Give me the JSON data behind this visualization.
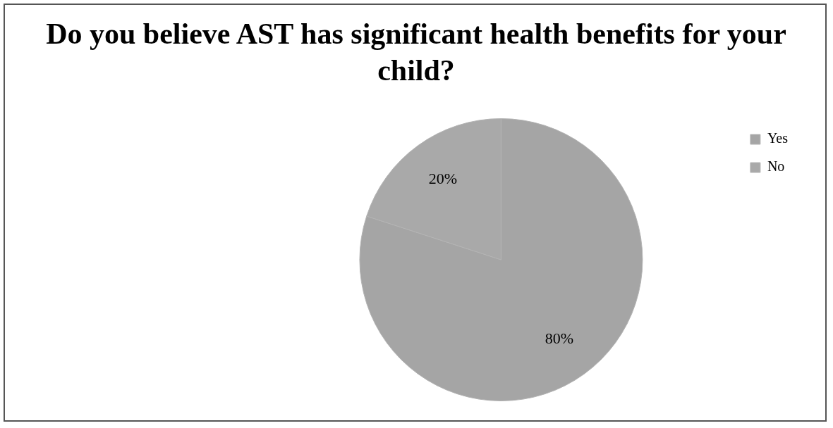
{
  "chart_data": {
    "type": "pie",
    "title": "Do you believe AST has significant health benefits for your child?",
    "categories": [
      "Yes",
      "No"
    ],
    "values": [
      80,
      20
    ],
    "colors": [
      "#a5a5a5",
      "#a9a9a9"
    ],
    "value_labels": [
      "80%",
      "20%"
    ],
    "legend": "right"
  }
}
